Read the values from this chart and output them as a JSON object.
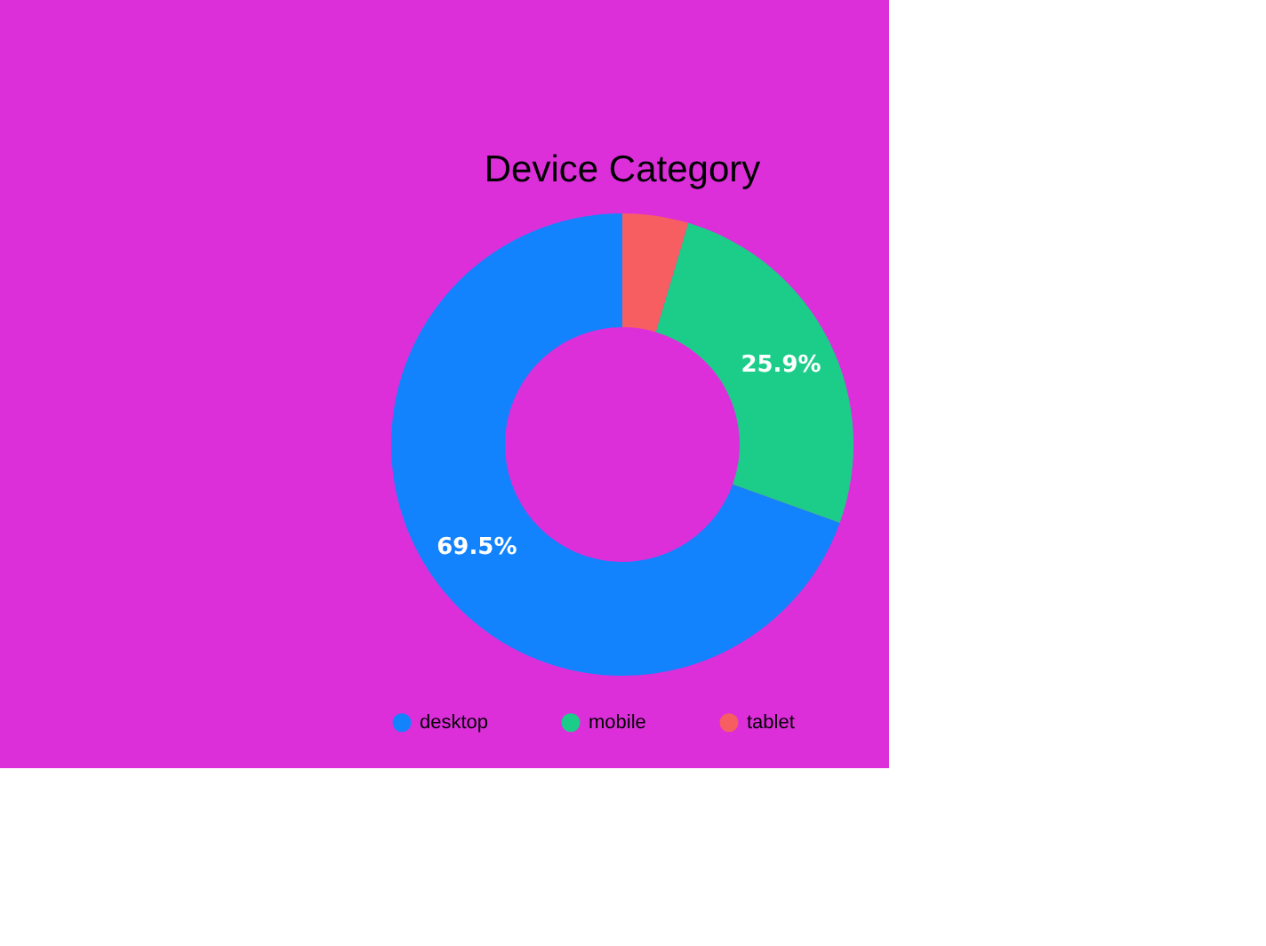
{
  "chart_data": {
    "type": "donut",
    "title": "Device Category",
    "categories": [
      "desktop",
      "mobile",
      "tablet"
    ],
    "values": [
      69.5,
      25.9,
      4.6
    ],
    "colors": [
      "#1283fd",
      "#1ccd8a",
      "#f75e62"
    ],
    "value_labels": [
      "69.5%",
      "25.9%",
      null
    ],
    "legend": "bottom"
  }
}
